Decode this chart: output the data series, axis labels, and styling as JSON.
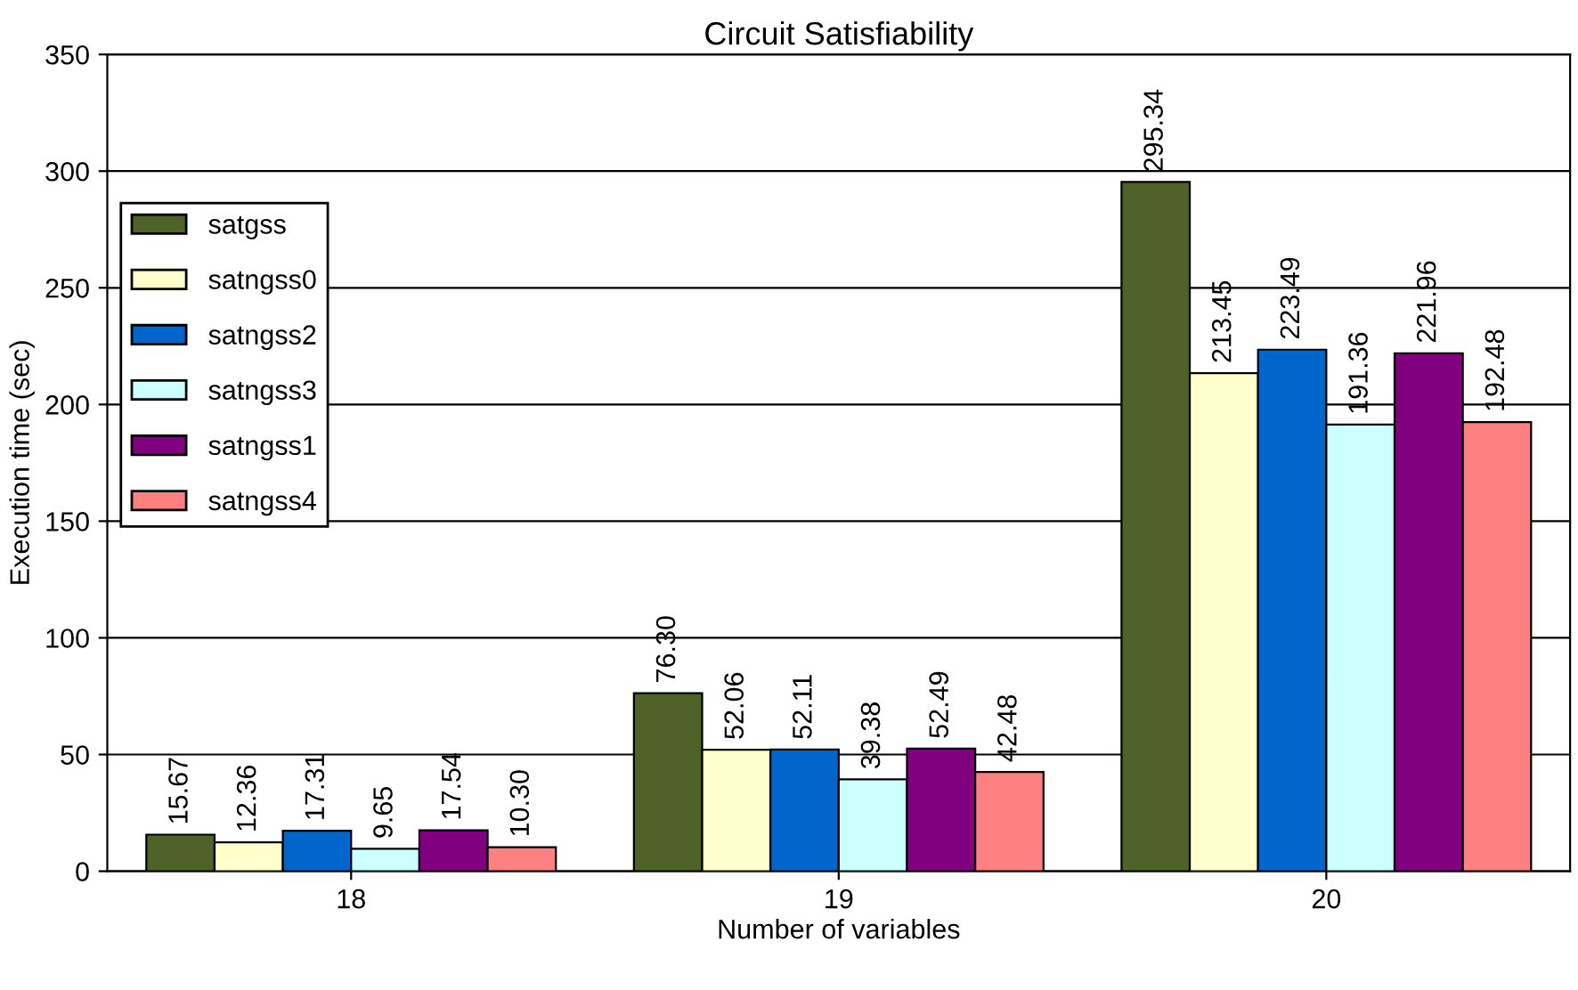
{
  "chart_data": {
    "type": "bar",
    "title": "Circuit Satisfiability",
    "xlabel": "Number of variables",
    "ylabel": "Execution time (sec)",
    "categories": [
      "18",
      "19",
      "20"
    ],
    "series": [
      {
        "name": "satgss",
        "color": "#4f6228",
        "values": [
          15.67,
          76.3,
          295.34
        ],
        "value_labels": [
          "15.67",
          "76.30",
          "295.34"
        ]
      },
      {
        "name": "satngss0",
        "color": "#ffffcc",
        "values": [
          12.36,
          52.06,
          213.45
        ],
        "value_labels": [
          "12.36",
          "52.06",
          "213.45"
        ]
      },
      {
        "name": "satngss2",
        "color": "#0066cc",
        "values": [
          17.31,
          52.11,
          223.49
        ],
        "value_labels": [
          "17.31",
          "52.11",
          "223.49"
        ]
      },
      {
        "name": "satngss3",
        "color": "#ccffff",
        "values": [
          9.65,
          39.38,
          191.36
        ],
        "value_labels": [
          "9.65",
          "39.38",
          "191.36"
        ]
      },
      {
        "name": "satngss1",
        "color": "#800080",
        "values": [
          17.54,
          52.49,
          221.96
        ],
        "value_labels": [
          "17.54",
          "52.49",
          "221.96"
        ]
      },
      {
        "name": "satngss4",
        "color": "#ff8080",
        "values": [
          10.3,
          42.48,
          192.48
        ],
        "value_labels": [
          "10.30",
          "42.48",
          "192.48"
        ]
      }
    ],
    "ylim": [
      0,
      350
    ],
    "yticks": [
      0,
      50,
      100,
      150,
      200,
      250,
      300,
      350
    ],
    "grid": "y",
    "legend": "left"
  }
}
